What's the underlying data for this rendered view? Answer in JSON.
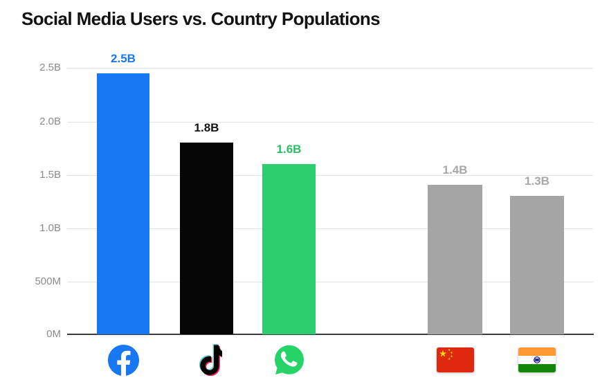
{
  "title": "Social Media Users vs. Country Populations",
  "chart_data": {
    "type": "bar",
    "title": "Social Media Users vs. Country Populations",
    "xlabel": "",
    "ylabel": "",
    "unit": "billions of people",
    "ylim": [
      0,
      2.5
    ],
    "grid": true,
    "legend_position": "none",
    "yticks": [
      "2.5B",
      "2.0B",
      "1.5B",
      "1.0B",
      "500M",
      "0M"
    ],
    "categories": [
      "Facebook",
      "TikTok",
      "WhatsApp",
      "China",
      "India"
    ],
    "series": [
      {
        "name": "Facebook",
        "icon": "facebook-icon",
        "value": 2.45,
        "label": "2.5B",
        "bar_color": "#1877F2",
        "label_color": "#1877F2"
      },
      {
        "name": "TikTok",
        "icon": "tiktok-icon",
        "value": 1.8,
        "label": "1.8B",
        "bar_color": "#060606",
        "label_color": "#141414"
      },
      {
        "name": "WhatsApp",
        "icon": "whatsapp-icon",
        "value": 1.6,
        "label": "1.6B",
        "bar_color": "#2DCE6F",
        "label_color": "#2BBD66"
      },
      {
        "name": "China",
        "icon": "china-flag-icon",
        "value": 1.4,
        "label": "1.4B",
        "bar_color": "#A5A5A5",
        "label_color": "#A8A8A8"
      },
      {
        "name": "India",
        "icon": "india-flag-icon",
        "value": 1.3,
        "label": "1.3B",
        "bar_color": "#A5A5A5",
        "label_color": "#A8A8A8"
      }
    ],
    "notes": "Facebook bar is drawn slightly below the 2.5B gridline (~2.45B) while labeled 2.5B; a visual gap separates the three social-media bars from the two country-population bars."
  },
  "icon_colors": {
    "facebook_blue": "#1877F2",
    "tiktok_cyan": "#69C9D0",
    "tiktok_pink": "#EE1D52",
    "tiktok_black": "#010101",
    "whatsapp_green": "#25D366",
    "china_flag_red": "#DE2910",
    "china_flag_yellow": "#FFDE00",
    "india_saffron": "#FF9933",
    "india_green": "#138808",
    "india_navy": "#000080"
  },
  "axis_colors": {
    "gridline": "#E3E3E3",
    "axis_line": "#3D3D3D",
    "tick_label": "#8A8A8A"
  }
}
